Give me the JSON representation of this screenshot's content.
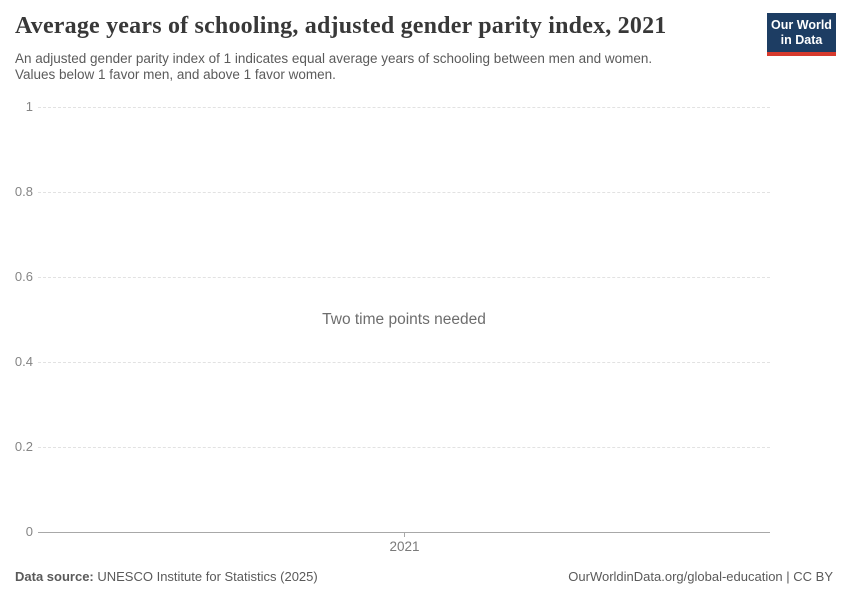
{
  "header": {
    "title": "Average years of schooling, adjusted gender parity index, 2021",
    "subtitle_lines": [
      "An adjusted gender parity index of 1 indicates equal average years of schooling between men and women.",
      "Values below 1 favor men, and above 1 favor women."
    ],
    "logo": {
      "line1": "Our World",
      "line2": "in Data",
      "bg_color": "#1d3d63",
      "stripe_color": "#d73a2d"
    }
  },
  "chart_data": {
    "type": "line",
    "title": "Average years of schooling, adjusted gender parity index, 2021",
    "series": [],
    "empty_message": "Two time points needed",
    "x_ticks": [
      "2021"
    ],
    "y_ticks": [
      "1",
      "0.8",
      "0.6",
      "0.4",
      "0.2",
      "0"
    ],
    "y_range": [
      0,
      1
    ],
    "grid": "dashed horizontal gridlines",
    "colors": {
      "gridline": "#e2e2e2",
      "axis_line": "#a8a8a8",
      "tick_label": "#858585",
      "message_text": "#6d6d6d"
    }
  },
  "footer": {
    "data_source_label": "Data source:",
    "data_source_value": " UNESCO Institute for Statistics (2025)",
    "attribution": "OurWorldinData.org/global-education | CC BY"
  }
}
